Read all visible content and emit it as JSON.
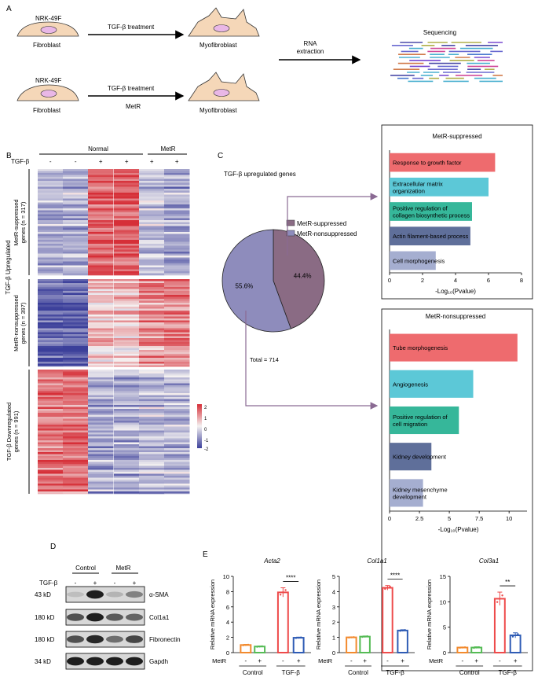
{
  "figure": {
    "panel_labels": [
      "A",
      "B",
      "C",
      "D",
      "E"
    ],
    "panelA": {
      "cell_line": "NRK-49F",
      "treatment1": "TGF-β treatment",
      "treatment2a": "TGF-β treatment",
      "treatment2b": "MetR",
      "fibroblast_label": "Fibroblast",
      "myofibroblast_label": "Myofibroblast",
      "rna_line1": "RNA",
      "rna_line2": "extraction",
      "sequencing_label": "Sequencing"
    },
    "panelB": {
      "group_normal": "Normal",
      "group_metr": "MetR",
      "tgf_label": "TGF-β",
      "tgf_signs": [
        "-",
        "-",
        "+",
        "+",
        "+",
        "+"
      ],
      "row_label_1a": "MetR-suppressed",
      "row_label_1b": "genes (n = 317)",
      "row_label_2a": "MetR-nonsuppressed",
      "row_label_2b": "genes (n = 397)",
      "row_label_up": "TGF-β Upregulated",
      "row_label_3a": "TGF-β Downregulated",
      "row_label_3b": "genes (n = 991)",
      "scale_ticks": [
        "2",
        "1",
        "0",
        "-1",
        "-2"
      ],
      "colors": {
        "high": "#d62f38",
        "mid": "#f4f1f1",
        "low": "#3b3f9a"
      }
    },
    "panelD": {
      "group_control": "Control",
      "group_metr": "MetR",
      "tgf_label": "TGF-β",
      "signs": [
        "-",
        "+",
        "-",
        "+"
      ],
      "rows": [
        {
          "kd": "43 kD",
          "protein": "α-SMA"
        },
        {
          "kd": "180 kD",
          "protein": "Col1a1"
        },
        {
          "kd": "180 kD",
          "protein": "Fibronectin"
        },
        {
          "kd": "34 kD",
          "protein": "Gapdh"
        }
      ]
    }
  },
  "chart_data": [
    {
      "type": "pie",
      "title": "TGF-β upregulated genes",
      "labels": [
        "MetR-suppressed",
        "MetR-nonsuppressed"
      ],
      "values": [
        44.4,
        55.6
      ],
      "value_labels": [
        "44.4%",
        "55.6%"
      ],
      "colors": [
        "#8a6b84",
        "#8e8cbc"
      ],
      "total_label": "Total = 714"
    },
    {
      "type": "bar",
      "orientation": "horizontal",
      "title": "MetR-suppressed",
      "categories": [
        [
          "Response to growth factor"
        ],
        [
          "Extracellular matrix",
          "organization"
        ],
        [
          "Positive regulation of",
          "collagen biosynthetic process"
        ],
        [
          "Actin filament-based process"
        ],
        [
          "Cell morphogenesis"
        ]
      ],
      "values": [
        6.4,
        6.0,
        5.0,
        4.9,
        2.8
      ],
      "colors": [
        "#ee6b6e",
        "#5cc8d7",
        "#36b79a",
        "#5f6f9a",
        "#a5aed0"
      ],
      "xlabel": "-Log₁₀(Pvalue)",
      "xlim": [
        0,
        8
      ],
      "xticks": [
        "0",
        "2",
        "4",
        "6",
        "8"
      ]
    },
    {
      "type": "bar",
      "orientation": "horizontal",
      "title": "MetR-nonsuppressed",
      "categories": [
        [
          "Tube morphogenesis"
        ],
        [
          "Angiogenesis"
        ],
        [
          "Positive regulation of",
          "cell migration"
        ],
        [
          "Kidney development"
        ],
        [
          "Kidney mesenchyme",
          "development"
        ]
      ],
      "values": [
        10.7,
        7.0,
        5.8,
        3.5,
        2.8
      ],
      "colors": [
        "#ee6b6e",
        "#5cc8d7",
        "#36b79a",
        "#5f6f9a",
        "#a5aed0"
      ],
      "xlabel": "-Log₁₀(Pvalue)",
      "xlim": [
        0,
        11.5
      ],
      "xtick_values": [
        0,
        2.5,
        5,
        7.5,
        10
      ],
      "xticks": [
        "0",
        "2.5",
        "5",
        "7.5",
        "10"
      ]
    },
    {
      "type": "bar",
      "title": "Acta2",
      "ylabel": "Relative mRNA expression",
      "ylim": [
        0,
        10
      ],
      "yticks": [
        "0",
        "2",
        "4",
        "6",
        "8",
        "10"
      ],
      "values": [
        1.0,
        0.8,
        7.9,
        1.95
      ],
      "errors": [
        0.08,
        0.07,
        0.6,
        0.08
      ],
      "colors": [
        "#f28a2e",
        "#55bb55",
        "#ee4b4b",
        "#2f5cb5"
      ],
      "metr_signs": [
        "-",
        "+",
        "-",
        "+"
      ],
      "metr_label": "MetR",
      "groups": [
        "Control",
        "TGF-β"
      ],
      "significance": "****"
    },
    {
      "type": "bar",
      "title": "Col1a1",
      "ylabel": "Relative mRNA expression",
      "ylim": [
        0,
        5
      ],
      "yticks": [
        "0",
        "1",
        "2",
        "3",
        "4",
        "5"
      ],
      "values": [
        1.0,
        1.05,
        4.25,
        1.45
      ],
      "errors": [
        0.03,
        0.04,
        0.15,
        0.05
      ],
      "colors": [
        "#f28a2e",
        "#55bb55",
        "#ee4b4b",
        "#2f5cb5"
      ],
      "metr_signs": [
        "-",
        "+",
        "-",
        "+"
      ],
      "metr_label": "MetR",
      "groups": [
        "Control",
        "TGF-β"
      ],
      "significance": "****"
    },
    {
      "type": "bar",
      "title": "Col3a1",
      "ylabel": "Relative mRNA expression",
      "ylim": [
        0,
        15
      ],
      "yticks": [
        "0",
        "5",
        "10",
        "15"
      ],
      "values": [
        1.0,
        1.0,
        10.6,
        3.4
      ],
      "errors": [
        0.1,
        0.15,
        1.3,
        0.5
      ],
      "colors": [
        "#f28a2e",
        "#55bb55",
        "#ee4b4b",
        "#2f5cb5"
      ],
      "metr_signs": [
        "-",
        "+",
        "-",
        "+"
      ],
      "metr_label": "MetR",
      "groups": [
        "Control",
        "TGF-β"
      ],
      "significance": "**"
    }
  ]
}
